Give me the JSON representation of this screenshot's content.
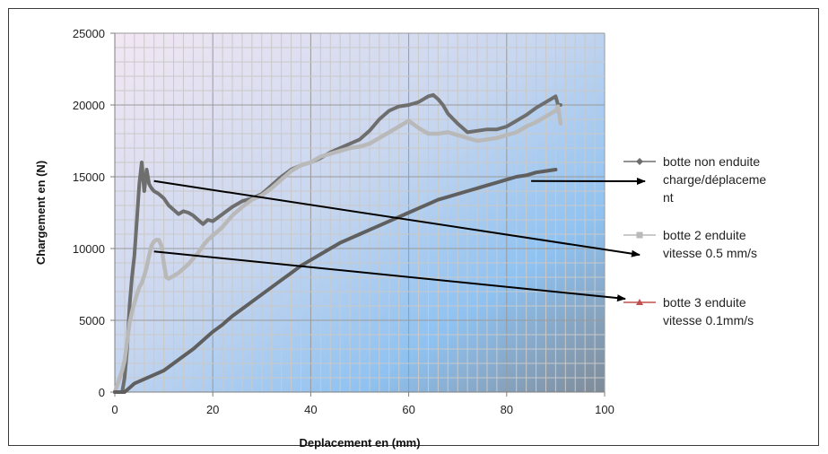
{
  "chart_data": {
    "type": "line",
    "xlabel": "Deplacement en (mm)",
    "ylabel": "Chargement en (N)",
    "xlim": [
      0,
      100
    ],
    "ylim": [
      0,
      25000
    ],
    "x_ticks": [
      0,
      20,
      40,
      60,
      80,
      100
    ],
    "y_ticks": [
      0,
      5000,
      10000,
      15000,
      20000,
      25000
    ],
    "grid": true,
    "legend_position": "right",
    "series": [
      {
        "name_lines": [
          "botte non enduite",
          "charge/déplaceme",
          "nt"
        ],
        "color": "#6e6e6e",
        "marker": "diamond",
        "x": [
          0,
          1.5,
          2,
          2.5,
          3,
          3.5,
          4,
          4.5,
          5,
          5.5,
          6,
          6.5,
          7,
          7.5,
          8,
          9,
          10,
          11,
          12,
          13,
          14,
          15,
          16,
          17,
          18,
          19,
          20,
          22,
          24,
          26,
          28,
          30,
          32,
          34,
          36,
          38,
          40,
          42,
          44,
          46,
          48,
          50,
          52,
          54,
          56,
          58,
          60,
          62,
          64,
          65,
          66,
          67,
          68,
          70,
          72,
          74,
          76,
          78,
          80,
          82,
          84,
          86,
          88,
          90,
          90.5,
          91
        ],
        "y": [
          0,
          0,
          1000,
          3000,
          6000,
          8000,
          9500,
          12000,
          14500,
          16000,
          14000,
          15500,
          14500,
          14200,
          14000,
          13800,
          13500,
          13000,
          12700,
          12400,
          12600,
          12500,
          12300,
          12000,
          11700,
          12000,
          11900,
          12400,
          12900,
          13300,
          13500,
          13800,
          14400,
          15000,
          15500,
          15800,
          16000,
          16300,
          16700,
          17000,
          17300,
          17600,
          18200,
          19000,
          19600,
          19900,
          20000,
          20200,
          20600,
          20700,
          20400,
          20000,
          19400,
          18700,
          18100,
          18200,
          18300,
          18300,
          18500,
          18900,
          19300,
          19800,
          20200,
          20600,
          20000,
          20000
        ]
      },
      {
        "name_lines": [
          "botte 2 enduite",
          "vitesse 0.5 mm/s"
        ],
        "color": "#b9b9b9",
        "marker": "square",
        "x": [
          0,
          0.5,
          1,
          1.5,
          2,
          2.5,
          3,
          3.5,
          4,
          4.5,
          5,
          5.5,
          6,
          6.5,
          7,
          7.5,
          8,
          8.5,
          9,
          9.5,
          10,
          10.5,
          11,
          11.5,
          12,
          13,
          14,
          15,
          16,
          17,
          18,
          19,
          20,
          22,
          24,
          26,
          28,
          30,
          32,
          34,
          36,
          38,
          40,
          42,
          44,
          46,
          48,
          50,
          52,
          54,
          56,
          58,
          60,
          62,
          64,
          66,
          68,
          70,
          72,
          74,
          76,
          78,
          80,
          82,
          84,
          86,
          88,
          90,
          90.5,
          91
        ],
        "y": [
          0,
          500,
          1000,
          1500,
          2200,
          3500,
          4800,
          5600,
          6200,
          6800,
          7300,
          7600,
          8100,
          8700,
          9500,
          10200,
          10500,
          10600,
          10600,
          10200,
          9000,
          8000,
          7900,
          8000,
          8100,
          8300,
          8600,
          8900,
          9300,
          9700,
          10200,
          10600,
          10900,
          11500,
          12300,
          12900,
          13400,
          13700,
          14200,
          14800,
          15400,
          15800,
          16000,
          16400,
          16600,
          16800,
          17000,
          17100,
          17300,
          17700,
          18100,
          18500,
          18900,
          18400,
          18000,
          18000,
          18100,
          17900,
          17700,
          17500,
          17600,
          17700,
          17900,
          18100,
          18500,
          18800,
          19200,
          19600,
          19900,
          18700
        ]
      },
      {
        "name_lines": [
          "botte 3 enduite",
          "vitesse 0.1mm/s"
        ],
        "color": "#5f5f5f",
        "marker": "triangle",
        "legend_color": "#c0504d",
        "x": [
          0,
          2,
          3,
          4,
          6,
          8,
          10,
          12,
          14,
          16,
          18,
          20,
          22,
          24,
          26,
          28,
          30,
          32,
          34,
          36,
          38,
          40,
          42,
          44,
          46,
          48,
          50,
          52,
          54,
          56,
          58,
          60,
          62,
          64,
          66,
          68,
          70,
          72,
          74,
          76,
          78,
          80,
          82,
          84,
          86,
          88,
          90
        ],
        "y": [
          0,
          0,
          300,
          600,
          900,
          1200,
          1500,
          2000,
          2500,
          3000,
          3600,
          4200,
          4700,
          5300,
          5800,
          6300,
          6800,
          7300,
          7800,
          8300,
          8800,
          9200,
          9600,
          10000,
          10400,
          10700,
          11000,
          11300,
          11600,
          11900,
          12200,
          12500,
          12800,
          13100,
          13400,
          13600,
          13800,
          14000,
          14200,
          14400,
          14600,
          14800,
          15000,
          15100,
          15300,
          15400,
          15500
        ]
      }
    ],
    "annotations": [
      {
        "type": "arrow",
        "from": [
          8,
          14700
        ],
        "to_series": 1
      },
      {
        "type": "arrow",
        "from": [
          8,
          9800
        ],
        "to_series": 2
      },
      {
        "type": "arrow",
        "from": [
          85,
          14700
        ],
        "to_series": 0
      }
    ]
  }
}
